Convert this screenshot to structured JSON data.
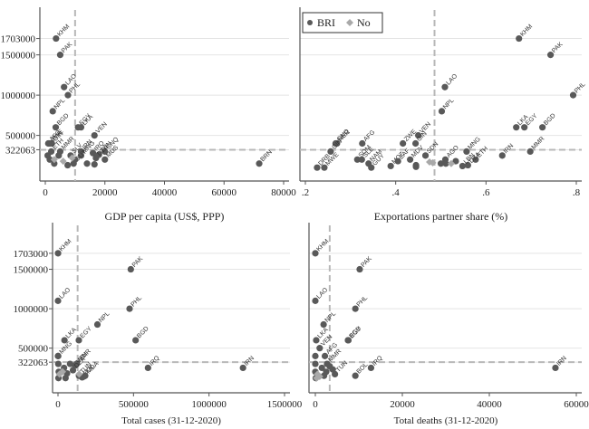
{
  "legend": {
    "position": "top-left of top-right panel",
    "items": [
      {
        "label": "BRI",
        "marker": "circle",
        "color": "#595959"
      },
      {
        "label": "No",
        "marker": "diamond",
        "color": "#a9a9a9"
      }
    ]
  },
  "chart_data": [
    {
      "type": "scatter",
      "title": "",
      "xlabel": "GDP per capita (US$, PPP)",
      "ylabel": "",
      "xlim": [
        0,
        80000
      ],
      "ylim": [
        100000,
        1900000
      ],
      "xticks": [
        "0",
        "20000",
        "40000",
        "60000",
        "80000"
      ],
      "xtick_values": [
        0,
        20000,
        40000,
        60000,
        80000
      ],
      "yticks": [
        "1703000",
        "1500000",
        "1000000",
        "500000",
        "322063"
      ],
      "ytick_values": [
        1703000,
        1500000,
        1000000,
        500000,
        322063
      ],
      "ref_x": 10000,
      "ref_y": 322063,
      "grid": true,
      "show_y_labels": true,
      "points": [
        {
          "label": "KHM",
          "x": 3600,
          "y": 1703000,
          "group": "BRI"
        },
        {
          "label": "PAK",
          "x": 5000,
          "y": 1500000,
          "group": "BRI"
        },
        {
          "label": "LAO",
          "x": 6300,
          "y": 1100000,
          "group": "BRI"
        },
        {
          "label": "PHL",
          "x": 7600,
          "y": 1000000,
          "group": "BRI"
        },
        {
          "label": "NPL",
          "x": 2500,
          "y": 800000,
          "group": "BRI"
        },
        {
          "label": "BGD",
          "x": 3500,
          "y": 600000,
          "group": "BRI"
        },
        {
          "label": "EGY",
          "x": 11000,
          "y": 600000,
          "group": "BRI"
        },
        {
          "label": "LKA",
          "x": 12000,
          "y": 600000,
          "group": "BRI"
        },
        {
          "label": "VEN",
          "x": 16500,
          "y": 500000,
          "group": "BRI"
        },
        {
          "label": "ZWE",
          "x": 1500,
          "y": 400000,
          "group": "BRI"
        },
        {
          "label": "GIN",
          "x": 2200,
          "y": 400000,
          "group": "BRI"
        },
        {
          "label": "AFG",
          "x": 1000,
          "y": 400000,
          "group": "BRI"
        },
        {
          "label": "ETH",
          "x": 2000,
          "y": 300000,
          "group": "BRI"
        },
        {
          "label": "MMR",
          "x": 5000,
          "y": 300000,
          "group": "BRI"
        },
        {
          "label": "IRN",
          "x": 12000,
          "y": 300000,
          "group": "BRI"
        },
        {
          "label": "MNG",
          "x": 12000,
          "y": 250000,
          "group": "BRI"
        },
        {
          "label": "IRQ",
          "x": 16000,
          "y": 280000,
          "group": "BRI"
        },
        {
          "label": "GNQ",
          "x": 20000,
          "y": 300000,
          "group": "BRI"
        },
        {
          "label": "TUN",
          "x": 18000,
          "y": 260000,
          "group": "BRI"
        },
        {
          "label": "MUS",
          "x": 20000,
          "y": 200000,
          "group": "BRI"
        },
        {
          "label": "DZA",
          "x": 17000,
          "y": 220000,
          "group": "BRI"
        },
        {
          "label": "SLV",
          "x": 8500,
          "y": 250000,
          "group": "BRI"
        },
        {
          "label": "GUY",
          "x": 9500,
          "y": 150000,
          "group": "BRI"
        },
        {
          "label": "BRN",
          "x": 71800,
          "y": 150000,
          "group": "BRI"
        },
        {
          "label": "",
          "x": 800,
          "y": 250000,
          "group": "BRI"
        },
        {
          "label": "",
          "x": 1500,
          "y": 200000,
          "group": "BRI"
        },
        {
          "label": "",
          "x": 3000,
          "y": 150000,
          "group": "BRI"
        },
        {
          "label": "",
          "x": 4500,
          "y": 250000,
          "group": "BRI"
        },
        {
          "label": "",
          "x": 7500,
          "y": 130000,
          "group": "BRI"
        },
        {
          "label": "",
          "x": 14000,
          "y": 150000,
          "group": "BRI"
        },
        {
          "label": "",
          "x": 16500,
          "y": 140000,
          "group": "BRI"
        },
        {
          "label": "",
          "x": 10000,
          "y": 200000,
          "group": "BRI"
        },
        {
          "label": "",
          "x": 6000,
          "y": 180000,
          "group": "No"
        },
        {
          "label": "",
          "x": 3000,
          "y": 200000,
          "group": "No"
        },
        {
          "label": "",
          "x": 9000,
          "y": 220000,
          "group": "No"
        }
      ]
    },
    {
      "type": "scatter",
      "title": "",
      "xlabel": "Exportations partner share (%)",
      "ylabel": "",
      "xlim": [
        0.2,
        0.8
      ],
      "ylim": [
        100000,
        1900000
      ],
      "xticks": [
        ".2",
        ".4",
        ".6",
        ".8"
      ],
      "xtick_values": [
        0.2,
        0.4,
        0.6,
        0.8
      ],
      "yticks": [],
      "ytick_values": [
        1703000,
        1500000,
        1000000,
        500000,
        322063
      ],
      "ref_x": 0.486,
      "ref_y": 322063,
      "grid": true,
      "show_y_labels": false,
      "points": [
        {
          "label": "KHM",
          "x": 0.673,
          "y": 1703000,
          "group": "BRI"
        },
        {
          "label": "PAK",
          "x": 0.743,
          "y": 1500000,
          "group": "BRI"
        },
        {
          "label": "PHL",
          "x": 0.793,
          "y": 1000000,
          "group": "BRI"
        },
        {
          "label": "LAO",
          "x": 0.509,
          "y": 1100000,
          "group": "BRI"
        },
        {
          "label": "NPL",
          "x": 0.502,
          "y": 800000,
          "group": "BRI"
        },
        {
          "label": "LKA",
          "x": 0.667,
          "y": 600000,
          "group": "BRI"
        },
        {
          "label": "EGY",
          "x": 0.685,
          "y": 600000,
          "group": "BRI"
        },
        {
          "label": "BGD",
          "x": 0.725,
          "y": 600000,
          "group": "BRI"
        },
        {
          "label": "MMR",
          "x": 0.698,
          "y": 300000,
          "group": "BRI"
        },
        {
          "label": "IRN",
          "x": 0.636,
          "y": 250000,
          "group": "BRI"
        },
        {
          "label": "GNQ",
          "x": 0.267,
          "y": 400000,
          "group": "BRI"
        },
        {
          "label": "NER",
          "x": 0.27,
          "y": 400000,
          "group": "BRI"
        },
        {
          "label": "GIN",
          "x": 0.256,
          "y": 300000,
          "group": "BRI"
        },
        {
          "label": "AFG",
          "x": 0.326,
          "y": 400000,
          "group": "BRI"
        },
        {
          "label": "ZWE",
          "x": 0.416,
          "y": 400000,
          "group": "BRI"
        },
        {
          "label": "VEN",
          "x": 0.45,
          "y": 500000,
          "group": "BRI"
        },
        {
          "label": "GIN",
          "x": 0.444,
          "y": 400000,
          "group": "BRI"
        },
        {
          "label": "SOM",
          "x": 0.315,
          "y": 200000,
          "group": "BRI"
        },
        {
          "label": "SLE",
          "x": 0.325,
          "y": 200000,
          "group": "BRI"
        },
        {
          "label": "NAM",
          "x": 0.34,
          "y": 150000,
          "group": "BRI"
        },
        {
          "label": "GUY",
          "x": 0.346,
          "y": 100000,
          "group": "BRI"
        },
        {
          "label": "DRB",
          "x": 0.226,
          "y": 100000,
          "group": "BRI"
        },
        {
          "label": "MWE",
          "x": 0.242,
          "y": 100000,
          "group": "BRI"
        },
        {
          "label": "MDV",
          "x": 0.432,
          "y": 200000,
          "group": "BRI"
        },
        {
          "label": "MOZ",
          "x": 0.389,
          "y": 120000,
          "group": "BRI"
        },
        {
          "label": "ZAF",
          "x": 0.405,
          "y": 180000,
          "group": "BRI"
        },
        {
          "label": "SDN",
          "x": 0.466,
          "y": 250000,
          "group": "BRI"
        },
        {
          "label": "AGO",
          "x": 0.51,
          "y": 200000,
          "group": "BRI"
        },
        {
          "label": "MNG",
          "x": 0.557,
          "y": 300000,
          "group": "BRI"
        },
        {
          "label": "ETH",
          "x": 0.577,
          "y": 200000,
          "group": "BRI"
        },
        {
          "label": "DZA",
          "x": 0.56,
          "y": 130000,
          "group": "BRI"
        },
        {
          "label": "LBN",
          "x": 0.548,
          "y": 120000,
          "group": "BRI"
        },
        {
          "label": "",
          "x": 0.445,
          "y": 130000,
          "group": "BRI"
        },
        {
          "label": "",
          "x": 0.445,
          "y": 110000,
          "group": "BRI"
        },
        {
          "label": "",
          "x": 0.5,
          "y": 150000,
          "group": "BRI"
        },
        {
          "label": "",
          "x": 0.511,
          "y": 150000,
          "group": "BRI"
        },
        {
          "label": "",
          "x": 0.533,
          "y": 180000,
          "group": "BRI"
        },
        {
          "label": "",
          "x": 0.475,
          "y": 170000,
          "group": "No"
        },
        {
          "label": "",
          "x": 0.482,
          "y": 160000,
          "group": "No"
        },
        {
          "label": "",
          "x": 0.523,
          "y": 150000,
          "group": "No"
        }
      ]
    },
    {
      "type": "scatter",
      "title": "",
      "xlabel": "Total cases (31-12-2020)",
      "ylabel": "",
      "xlim": [
        0,
        1500000
      ],
      "ylim": [
        100000,
        1900000
      ],
      "xticks": [
        "0",
        "500000",
        "1000000",
        "1500000"
      ],
      "xtick_values": [
        0,
        500000,
        1000000,
        1500000
      ],
      "yticks": [
        "1703000",
        "1500000",
        "1000000",
        "500000",
        "322063"
      ],
      "ytick_values": [
        1703000,
        1500000,
        1000000,
        500000,
        322063
      ],
      "ref_x": 130000,
      "ref_y": 322063,
      "grid": true,
      "show_y_labels": true,
      "points": [
        {
          "label": "KHM",
          "x": 400,
          "y": 1703000,
          "group": "BRI"
        },
        {
          "label": "PAK",
          "x": 482000,
          "y": 1500000,
          "group": "BRI"
        },
        {
          "label": "LAO",
          "x": 40,
          "y": 1100000,
          "group": "BRI"
        },
        {
          "label": "PHL",
          "x": 474000,
          "y": 1000000,
          "group": "BRI"
        },
        {
          "label": "NPL",
          "x": 261000,
          "y": 800000,
          "group": "BRI"
        },
        {
          "label": "LKA",
          "x": 43000,
          "y": 600000,
          "group": "BRI"
        },
        {
          "label": "EGY",
          "x": 138000,
          "y": 600000,
          "group": "BRI"
        },
        {
          "label": "BGD",
          "x": 514000,
          "y": 600000,
          "group": "BRI"
        },
        {
          "label": "IRQ",
          "x": 596000,
          "y": 250000,
          "group": "BRI"
        },
        {
          "label": "IRN",
          "x": 1225000,
          "y": 250000,
          "group": "BRI"
        },
        {
          "label": "MMR",
          "x": 124000,
          "y": 300000,
          "group": "BRI"
        },
        {
          "label": "VEN",
          "x": 113000,
          "y": 280000,
          "group": "BRI"
        },
        {
          "label": "MNG",
          "x": 1200,
          "y": 400000,
          "group": "BRI"
        },
        {
          "label": "DZA",
          "x": 99000,
          "y": 220000,
          "group": "BRI"
        },
        {
          "label": "BOL",
          "x": 160000,
          "y": 130000,
          "group": "BRI"
        },
        {
          "label": "TUN",
          "x": 139000,
          "y": 150000,
          "group": "BRI"
        },
        {
          "label": "MDA",
          "x": 180000,
          "y": 150000,
          "group": "BRI"
        },
        {
          "label": "",
          "x": 0,
          "y": 400000,
          "group": "BRI"
        },
        {
          "label": "",
          "x": 2000,
          "y": 300000,
          "group": "BRI"
        },
        {
          "label": "",
          "x": 5000,
          "y": 200000,
          "group": "BRI"
        },
        {
          "label": "",
          "x": 3000,
          "y": 120000,
          "group": "BRI"
        },
        {
          "label": "",
          "x": 40000,
          "y": 250000,
          "group": "BRI"
        },
        {
          "label": "",
          "x": 60000,
          "y": 180000,
          "group": "BRI"
        },
        {
          "label": "",
          "x": 80000,
          "y": 300000,
          "group": "BRI"
        },
        {
          "label": "",
          "x": 50000,
          "y": 120000,
          "group": "BRI"
        },
        {
          "label": "",
          "x": 170000,
          "y": 140000,
          "group": "BRI"
        },
        {
          "label": "",
          "x": 10000,
          "y": 170000,
          "group": "No"
        },
        {
          "label": "",
          "x": 30000,
          "y": 200000,
          "group": "No"
        },
        {
          "label": "",
          "x": 140000,
          "y": 170000,
          "group": "No"
        }
      ]
    },
    {
      "type": "scatter",
      "title": "",
      "xlabel": "Total deaths (31-12-2020)",
      "ylabel": "",
      "xlim": [
        0,
        60000
      ],
      "ylim": [
        100000,
        1900000
      ],
      "xticks": [
        "0",
        "20000",
        "40000",
        "60000"
      ],
      "xtick_values": [
        0,
        20000,
        40000,
        60000
      ],
      "yticks": [],
      "ytick_values": [
        1703000,
        1500000,
        1000000,
        500000,
        322063
      ],
      "ref_x": 3300,
      "ref_y": 322063,
      "grid": true,
      "show_y_labels": false,
      "points": [
        {
          "label": "KHM",
          "x": 0,
          "y": 1703000,
          "group": "BRI"
        },
        {
          "label": "PAK",
          "x": 10200,
          "y": 1500000,
          "group": "BRI"
        },
        {
          "label": "LAO",
          "x": 0,
          "y": 1100000,
          "group": "BRI"
        },
        {
          "label": "PHL",
          "x": 9200,
          "y": 1000000,
          "group": "BRI"
        },
        {
          "label": "NPL",
          "x": 1900,
          "y": 800000,
          "group": "BRI"
        },
        {
          "label": "LKA",
          "x": 200,
          "y": 600000,
          "group": "BRI"
        },
        {
          "label": "EGY",
          "x": 7600,
          "y": 600000,
          "group": "BRI"
        },
        {
          "label": "BGD",
          "x": 7500,
          "y": 600000,
          "group": "BRI"
        },
        {
          "label": "IRQ",
          "x": 12800,
          "y": 250000,
          "group": "BRI"
        },
        {
          "label": "BOL",
          "x": 9200,
          "y": 150000,
          "group": "BRI"
        },
        {
          "label": "IRN",
          "x": 55200,
          "y": 250000,
          "group": "BRI"
        },
        {
          "label": "VEN",
          "x": 1000,
          "y": 500000,
          "group": "BRI"
        },
        {
          "label": "AFG",
          "x": 2200,
          "y": 400000,
          "group": "BRI"
        },
        {
          "label": "MMR",
          "x": 2700,
          "y": 300000,
          "group": "BRI"
        },
        {
          "label": "TUN",
          "x": 4500,
          "y": 170000,
          "group": "BRI"
        },
        {
          "label": "",
          "x": 0,
          "y": 400000,
          "group": "BRI"
        },
        {
          "label": "",
          "x": 0,
          "y": 300000,
          "group": "BRI"
        },
        {
          "label": "",
          "x": 0,
          "y": 200000,
          "group": "BRI"
        },
        {
          "label": "",
          "x": 100,
          "y": 120000,
          "group": "BRI"
        },
        {
          "label": "",
          "x": 1500,
          "y": 250000,
          "group": "BRI"
        },
        {
          "label": "",
          "x": 2500,
          "y": 200000,
          "group": "BRI"
        },
        {
          "label": "",
          "x": 3300,
          "y": 270000,
          "group": "BRI"
        },
        {
          "label": "",
          "x": 2000,
          "y": 150000,
          "group": "BRI"
        },
        {
          "label": "",
          "x": 4000,
          "y": 230000,
          "group": "BRI"
        },
        {
          "label": "",
          "x": 500,
          "y": 170000,
          "group": "No"
        },
        {
          "label": "",
          "x": 1000,
          "y": 140000,
          "group": "No"
        },
        {
          "label": "",
          "x": 300,
          "y": 120000,
          "group": "No"
        }
      ]
    }
  ]
}
